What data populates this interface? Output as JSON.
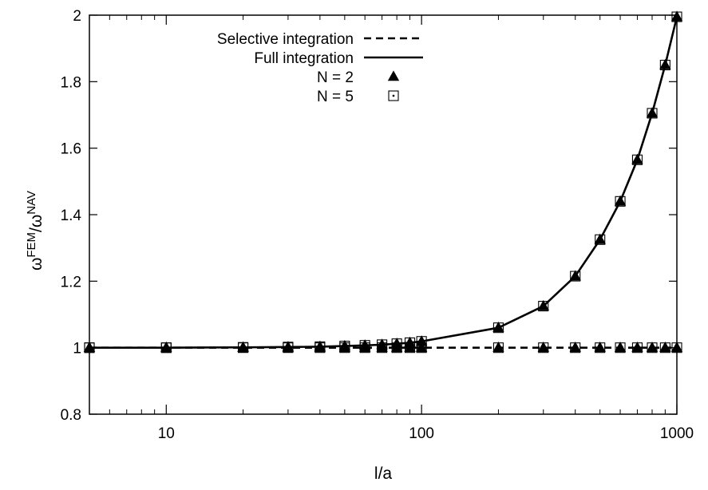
{
  "chart_data": {
    "type": "line",
    "xlabel": "l/a",
    "ylabel": {
      "base1": "ω",
      "sup1": "FEM",
      "slash": "/",
      "base2": "ω",
      "sup2": "NAV"
    },
    "x_scale": "log",
    "xlim": [
      5,
      1000
    ],
    "ylim": [
      0.8,
      2.0
    ],
    "x_ticks": [
      {
        "value": 10,
        "label": "10"
      },
      {
        "value": 100,
        "label": "100"
      },
      {
        "value": 1000,
        "label": "1000"
      }
    ],
    "y_ticks": [
      {
        "value": 0.8,
        "label": "0.8"
      },
      {
        "value": 1.0,
        "label": "1"
      },
      {
        "value": 1.2,
        "label": "1.2"
      },
      {
        "value": 1.4,
        "label": "1.4"
      },
      {
        "value": 1.6,
        "label": "1.6"
      },
      {
        "value": 1.8,
        "label": "1.8"
      },
      {
        "value": 2.0,
        "label": "2"
      }
    ],
    "legend_position": "top-right",
    "grid": false,
    "x": [
      5,
      10,
      20,
      30,
      40,
      50,
      60,
      70,
      80,
      90,
      100,
      200,
      300,
      400,
      500,
      600,
      700,
      800,
      900,
      1000
    ],
    "series": [
      {
        "name": "Selective integration",
        "style": "dashed-line",
        "y": [
          1.0,
          1.0,
          1.0,
          1.0,
          1.0,
          1.0,
          1.0,
          1.0,
          1.0,
          1.0,
          1.0,
          1.0,
          1.0,
          1.0,
          1.0,
          1.0,
          1.0,
          1.0,
          1.0,
          1.0
        ]
      },
      {
        "name": "Full integration",
        "style": "solid-line",
        "y": [
          1.0,
          1.0,
          1.001,
          1.002,
          1.003,
          1.005,
          1.007,
          1.009,
          1.012,
          1.015,
          1.019,
          1.06,
          1.125,
          1.215,
          1.325,
          1.44,
          1.565,
          1.705,
          1.85,
          1.995
        ]
      },
      {
        "name": "N = 2",
        "style": "triangle-markers",
        "x": [
          5,
          10,
          20,
          30,
          40,
          50,
          60,
          70,
          80,
          90,
          100,
          200,
          300,
          400,
          500,
          600,
          700,
          800,
          900,
          1000,
          5,
          10,
          20,
          30,
          40,
          50,
          60,
          70,
          80,
          90,
          100,
          200,
          300,
          400,
          500,
          600,
          700,
          800,
          900,
          1000
        ],
        "y": [
          1.0,
          1.0,
          1.0,
          1.0,
          1.0,
          1.0,
          1.0,
          1.0,
          1.0,
          1.0,
          1.0,
          1.0,
          1.0,
          1.0,
          1.0,
          1.0,
          1.0,
          1.0,
          1.0,
          1.0,
          1.0,
          1.0,
          1.001,
          1.002,
          1.003,
          1.005,
          1.007,
          1.009,
          1.012,
          1.015,
          1.019,
          1.06,
          1.125,
          1.215,
          1.325,
          1.44,
          1.565,
          1.705,
          1.85,
          1.995
        ]
      },
      {
        "name": "N = 5",
        "style": "square-dot-markers",
        "x": [
          5,
          10,
          20,
          30,
          40,
          50,
          60,
          70,
          80,
          90,
          100,
          200,
          300,
          400,
          500,
          600,
          700,
          800,
          900,
          1000,
          5,
          10,
          20,
          30,
          40,
          50,
          60,
          70,
          80,
          90,
          100,
          200,
          300,
          400,
          500,
          600,
          700,
          800,
          900,
          1000
        ],
        "y": [
          1.0,
          1.0,
          1.0,
          1.0,
          1.0,
          1.0,
          1.0,
          1.0,
          1.0,
          1.0,
          1.0,
          1.0,
          1.0,
          1.0,
          1.0,
          1.0,
          1.0,
          1.0,
          1.0,
          1.0,
          1.0,
          1.0,
          1.001,
          1.002,
          1.003,
          1.005,
          1.007,
          1.009,
          1.012,
          1.015,
          1.019,
          1.06,
          1.125,
          1.215,
          1.325,
          1.44,
          1.565,
          1.705,
          1.85,
          1.995
        ]
      }
    ]
  }
}
